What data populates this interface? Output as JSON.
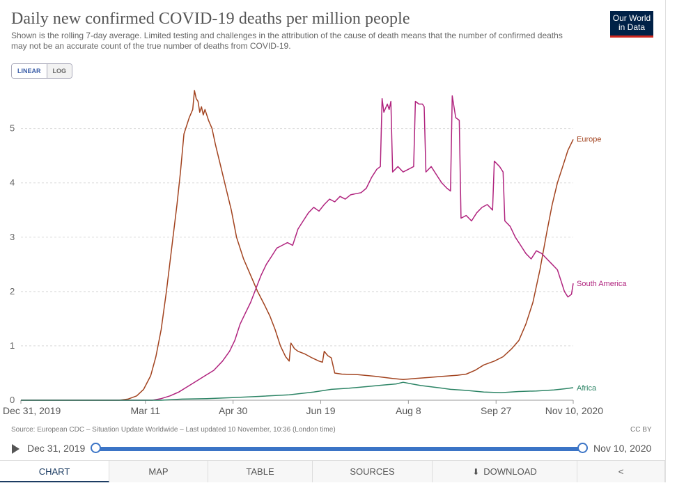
{
  "header": {
    "title": "Daily new confirmed COVID-19 deaths per million people",
    "subtitle": "Shown is the rolling 7-day average. Limited testing and challenges in the attribution of the cause of death means that the number of confirmed deaths may not be an accurate count of the true number of deaths from COVID-19.",
    "logo_line1": "Our World",
    "logo_line2": "in Data"
  },
  "scale_toggle": {
    "linear": "LINEAR",
    "log": "LOG",
    "selected": "LINEAR"
  },
  "footer": {
    "source": "Source: European CDC – Situation Update Worldwide – Last updated 10 November, 10:36 (London time)",
    "license": "CC BY"
  },
  "timeline": {
    "start_label": "Dec 31, 2019",
    "end_label": "Nov 10, 2020",
    "start_fraction": 0,
    "end_fraction": 1
  },
  "tabs": [
    "CHART",
    "MAP",
    "TABLE",
    "SOURCES",
    "DOWNLOAD",
    ""
  ],
  "icons": {
    "play": "play-icon",
    "download": "download-icon",
    "share": "share-icon"
  },
  "chart_data": {
    "type": "line",
    "title": "Daily new confirmed COVID-19 deaths per million people",
    "xlabel": "",
    "ylabel": "",
    "x_range": [
      "2019-12-31",
      "2020-11-10"
    ],
    "ylim": [
      0,
      5.7
    ],
    "y_ticks": [
      0,
      1,
      2,
      3,
      4,
      5
    ],
    "x_ticks": [
      {
        "date": "2019-12-31",
        "label": "Dec 31, 2019"
      },
      {
        "date": "2020-03-11",
        "label": "Mar 11"
      },
      {
        "date": "2020-04-30",
        "label": "Apr 30"
      },
      {
        "date": "2020-06-19",
        "label": "Jun 19"
      },
      {
        "date": "2020-08-08",
        "label": "Aug 8"
      },
      {
        "date": "2020-09-27",
        "label": "Sep 27"
      },
      {
        "date": "2020-11-10",
        "label": "Nov 10, 2020"
      }
    ],
    "grid": "horizontal-dashed",
    "legend": "line-end labels",
    "series": [
      {
        "name": "Europe",
        "color": "#a2431f",
        "points": [
          [
            "2019-12-31",
            0
          ],
          [
            "2020-02-25",
            0
          ],
          [
            "2020-03-01",
            0.02
          ],
          [
            "2020-03-06",
            0.08
          ],
          [
            "2020-03-10",
            0.2
          ],
          [
            "2020-03-14",
            0.45
          ],
          [
            "2020-03-17",
            0.8
          ],
          [
            "2020-03-20",
            1.3
          ],
          [
            "2020-03-23",
            2.0
          ],
          [
            "2020-03-26",
            2.8
          ],
          [
            "2020-03-29",
            3.6
          ],
          [
            "2020-03-31",
            4.2
          ],
          [
            "2020-04-02",
            4.9
          ],
          [
            "2020-04-05",
            5.2
          ],
          [
            "2020-04-07",
            5.35
          ],
          [
            "2020-04-08",
            5.7
          ],
          [
            "2020-04-09",
            5.55
          ],
          [
            "2020-04-10",
            5.5
          ],
          [
            "2020-04-11",
            5.3
          ],
          [
            "2020-04-12",
            5.4
          ],
          [
            "2020-04-13",
            5.25
          ],
          [
            "2020-04-14",
            5.35
          ],
          [
            "2020-04-16",
            5.15
          ],
          [
            "2020-04-18",
            5.0
          ],
          [
            "2020-04-20",
            4.7
          ],
          [
            "2020-04-23",
            4.3
          ],
          [
            "2020-04-26",
            3.9
          ],
          [
            "2020-04-29",
            3.5
          ],
          [
            "2020-05-02",
            3.0
          ],
          [
            "2020-05-06",
            2.6
          ],
          [
            "2020-05-10",
            2.3
          ],
          [
            "2020-05-14",
            2.0
          ],
          [
            "2020-05-18",
            1.75
          ],
          [
            "2020-05-21",
            1.55
          ],
          [
            "2020-05-24",
            1.3
          ],
          [
            "2020-05-27",
            1.0
          ],
          [
            "2020-05-30",
            0.8
          ],
          [
            "2020-06-01",
            0.72
          ],
          [
            "2020-06-02",
            1.05
          ],
          [
            "2020-06-04",
            0.95
          ],
          [
            "2020-06-06",
            0.9
          ],
          [
            "2020-06-10",
            0.85
          ],
          [
            "2020-06-14",
            0.78
          ],
          [
            "2020-06-18",
            0.72
          ],
          [
            "2020-06-20",
            0.7
          ],
          [
            "2020-06-21",
            0.9
          ],
          [
            "2020-06-23",
            0.82
          ],
          [
            "2020-06-25",
            0.78
          ],
          [
            "2020-06-27",
            0.5
          ],
          [
            "2020-07-01",
            0.48
          ],
          [
            "2020-07-10",
            0.47
          ],
          [
            "2020-07-20",
            0.44
          ],
          [
            "2020-07-30",
            0.4
          ],
          [
            "2020-08-05",
            0.38
          ],
          [
            "2020-08-12",
            0.4
          ],
          [
            "2020-08-20",
            0.42
          ],
          [
            "2020-08-28",
            0.44
          ],
          [
            "2020-09-05",
            0.46
          ],
          [
            "2020-09-10",
            0.48
          ],
          [
            "2020-09-15",
            0.55
          ],
          [
            "2020-09-20",
            0.65
          ],
          [
            "2020-09-26",
            0.72
          ],
          [
            "2020-10-01",
            0.8
          ],
          [
            "2020-10-06",
            0.95
          ],
          [
            "2020-10-10",
            1.1
          ],
          [
            "2020-10-14",
            1.4
          ],
          [
            "2020-10-18",
            1.8
          ],
          [
            "2020-10-22",
            2.4
          ],
          [
            "2020-10-26",
            3.1
          ],
          [
            "2020-10-29",
            3.6
          ],
          [
            "2020-11-01",
            4.0
          ],
          [
            "2020-11-04",
            4.3
          ],
          [
            "2020-11-07",
            4.6
          ],
          [
            "2020-11-10",
            4.8
          ]
        ]
      },
      {
        "name": "South America",
        "color": "#b0237e",
        "points": [
          [
            "2019-12-31",
            0
          ],
          [
            "2020-03-15",
            0
          ],
          [
            "2020-03-20",
            0.03
          ],
          [
            "2020-03-25",
            0.08
          ],
          [
            "2020-03-30",
            0.15
          ],
          [
            "2020-04-04",
            0.25
          ],
          [
            "2020-04-09",
            0.35
          ],
          [
            "2020-04-14",
            0.45
          ],
          [
            "2020-04-19",
            0.55
          ],
          [
            "2020-04-24",
            0.72
          ],
          [
            "2020-04-28",
            0.9
          ],
          [
            "2020-05-01",
            1.1
          ],
          [
            "2020-05-04",
            1.4
          ],
          [
            "2020-05-07",
            1.6
          ],
          [
            "2020-05-10",
            1.8
          ],
          [
            "2020-05-13",
            2.05
          ],
          [
            "2020-05-16",
            2.3
          ],
          [
            "2020-05-19",
            2.5
          ],
          [
            "2020-05-22",
            2.65
          ],
          [
            "2020-05-25",
            2.8
          ],
          [
            "2020-05-28",
            2.85
          ],
          [
            "2020-05-31",
            2.9
          ],
          [
            "2020-06-03",
            2.85
          ],
          [
            "2020-06-06",
            3.15
          ],
          [
            "2020-06-09",
            3.3
          ],
          [
            "2020-06-12",
            3.45
          ],
          [
            "2020-06-15",
            3.55
          ],
          [
            "2020-06-18",
            3.48
          ],
          [
            "2020-06-21",
            3.6
          ],
          [
            "2020-06-24",
            3.7
          ],
          [
            "2020-06-27",
            3.65
          ],
          [
            "2020-06-30",
            3.75
          ],
          [
            "2020-07-03",
            3.7
          ],
          [
            "2020-07-06",
            3.78
          ],
          [
            "2020-07-09",
            3.8
          ],
          [
            "2020-07-12",
            3.82
          ],
          [
            "2020-07-15",
            3.9
          ],
          [
            "2020-07-18",
            4.1
          ],
          [
            "2020-07-21",
            4.25
          ],
          [
            "2020-07-23",
            4.3
          ],
          [
            "2020-07-24",
            5.55
          ],
          [
            "2020-07-25",
            5.3
          ],
          [
            "2020-07-27",
            5.45
          ],
          [
            "2020-07-28",
            5.35
          ],
          [
            "2020-07-29",
            5.5
          ],
          [
            "2020-07-30",
            4.2
          ],
          [
            "2020-08-02",
            4.3
          ],
          [
            "2020-08-05",
            4.2
          ],
          [
            "2020-08-08",
            4.25
          ],
          [
            "2020-08-11",
            4.3
          ],
          [
            "2020-08-12",
            5.5
          ],
          [
            "2020-08-14",
            5.45
          ],
          [
            "2020-08-16",
            5.45
          ],
          [
            "2020-08-17",
            5.4
          ],
          [
            "2020-08-18",
            4.2
          ],
          [
            "2020-08-21",
            4.3
          ],
          [
            "2020-08-24",
            4.15
          ],
          [
            "2020-08-27",
            4.0
          ],
          [
            "2020-08-30",
            3.9
          ],
          [
            "2020-09-01",
            3.85
          ],
          [
            "2020-09-02",
            5.6
          ],
          [
            "2020-09-04",
            5.2
          ],
          [
            "2020-09-06",
            5.15
          ],
          [
            "2020-09-07",
            3.35
          ],
          [
            "2020-09-10",
            3.4
          ],
          [
            "2020-09-13",
            3.3
          ],
          [
            "2020-09-16",
            3.45
          ],
          [
            "2020-09-19",
            3.55
          ],
          [
            "2020-09-22",
            3.6
          ],
          [
            "2020-09-25",
            3.5
          ],
          [
            "2020-09-26",
            4.4
          ],
          [
            "2020-09-29",
            4.3
          ],
          [
            "2020-10-01",
            4.2
          ],
          [
            "2020-10-02",
            3.3
          ],
          [
            "2020-10-05",
            3.2
          ],
          [
            "2020-10-08",
            3.0
          ],
          [
            "2020-10-11",
            2.85
          ],
          [
            "2020-10-14",
            2.7
          ],
          [
            "2020-10-17",
            2.6
          ],
          [
            "2020-10-20",
            2.75
          ],
          [
            "2020-10-23",
            2.7
          ],
          [
            "2020-10-26",
            2.6
          ],
          [
            "2020-10-29",
            2.5
          ],
          [
            "2020-11-01",
            2.4
          ],
          [
            "2020-11-03",
            2.2
          ],
          [
            "2020-11-05",
            2.0
          ],
          [
            "2020-11-07",
            1.9
          ],
          [
            "2020-11-09",
            1.95
          ],
          [
            "2020-11-10",
            2.15
          ]
        ]
      },
      {
        "name": "Africa",
        "color": "#2c8465",
        "points": [
          [
            "2019-12-31",
            0
          ],
          [
            "2020-03-20",
            0
          ],
          [
            "2020-04-01",
            0.02
          ],
          [
            "2020-04-15",
            0.03
          ],
          [
            "2020-05-01",
            0.05
          ],
          [
            "2020-05-15",
            0.07
          ],
          [
            "2020-06-01",
            0.1
          ],
          [
            "2020-06-15",
            0.15
          ],
          [
            "2020-06-25",
            0.2
          ],
          [
            "2020-07-05",
            0.22
          ],
          [
            "2020-07-15",
            0.25
          ],
          [
            "2020-07-25",
            0.28
          ],
          [
            "2020-08-01",
            0.3
          ],
          [
            "2020-08-05",
            0.33
          ],
          [
            "2020-08-10",
            0.3
          ],
          [
            "2020-08-15",
            0.27
          ],
          [
            "2020-08-25",
            0.23
          ],
          [
            "2020-09-01",
            0.2
          ],
          [
            "2020-09-10",
            0.18
          ],
          [
            "2020-09-20",
            0.15
          ],
          [
            "2020-09-30",
            0.14
          ],
          [
            "2020-10-10",
            0.16
          ],
          [
            "2020-10-20",
            0.17
          ],
          [
            "2020-10-30",
            0.19
          ],
          [
            "2020-11-05",
            0.21
          ],
          [
            "2020-11-10",
            0.23
          ]
        ]
      }
    ]
  }
}
